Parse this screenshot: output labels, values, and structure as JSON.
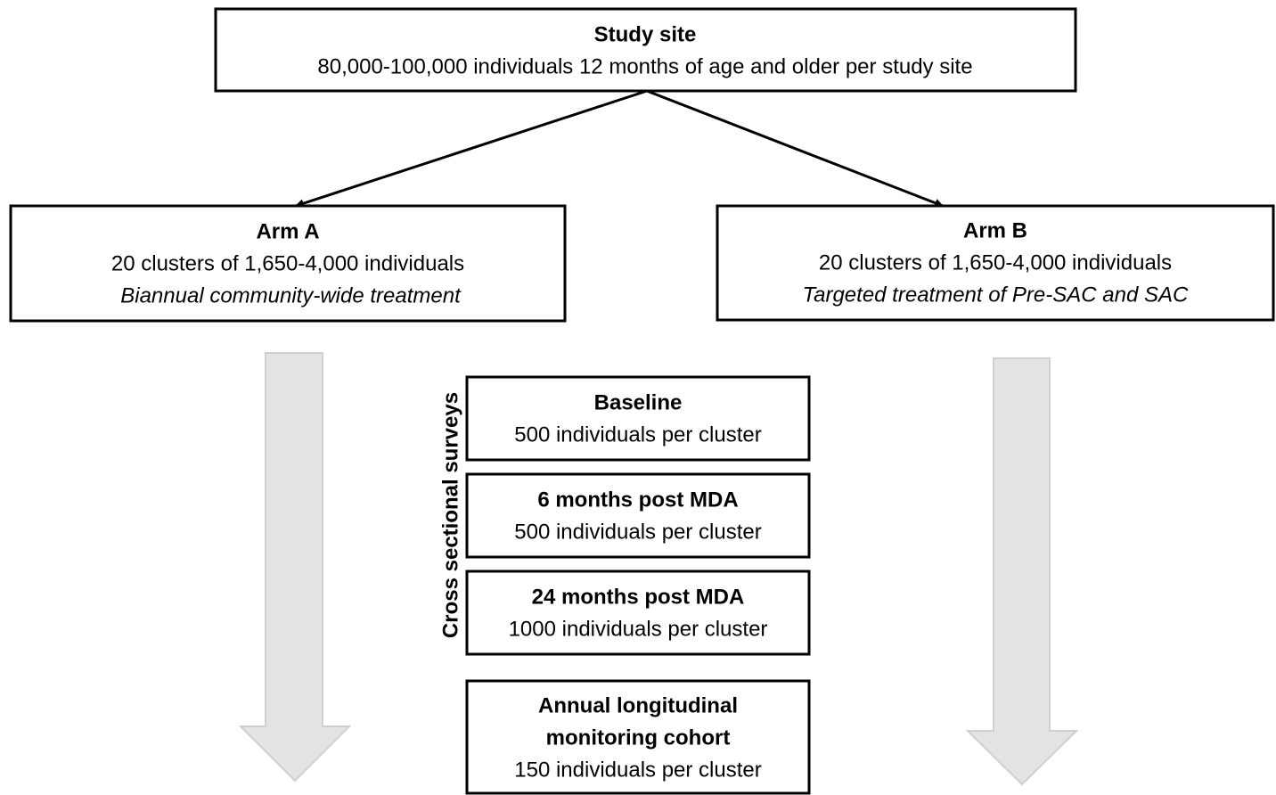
{
  "study_site": {
    "title": "Study site",
    "text": "80,000-100,000 individuals 12 months of age and older per study site"
  },
  "arms": [
    {
      "title": "Arm A",
      "text": "20 clusters of 1,650-4,000 individuals",
      "note": "Biannual community-wide treatment"
    },
    {
      "title": "Arm B",
      "text": "20 clusters of 1,650-4,000 individuals",
      "note": "Targeted treatment of Pre-SAC and SAC"
    }
  ],
  "side_label": "Cross sectional surveys",
  "surveys": [
    {
      "title": "Baseline",
      "text": "500 individuals per cluster"
    },
    {
      "title": "6 months post MDA",
      "text": "500 individuals per cluster"
    },
    {
      "title": "24 months post MDA",
      "text": "1000 individuals per cluster"
    }
  ],
  "cohort": {
    "title_lines": [
      "Annual longitudinal",
      "monitoring cohort"
    ],
    "text": "150 individuals per cluster"
  }
}
